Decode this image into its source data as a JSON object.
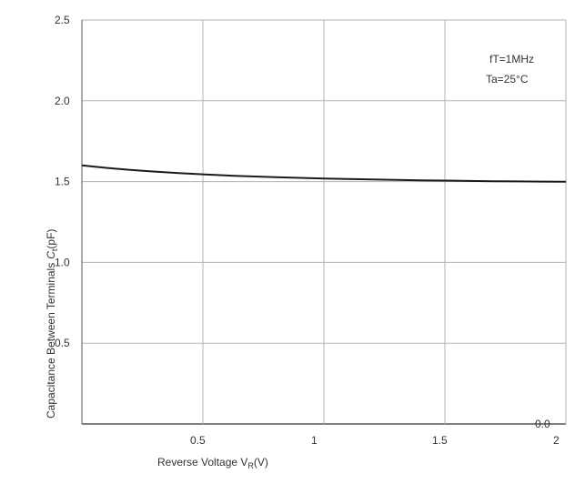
{
  "chart_data": {
    "type": "line",
    "title": "",
    "xlabel": "Reverse Voltage  V",
    "xlabel_sub": "R",
    "xlabel_unit": "(V)",
    "ylabel": "Capacitance Between Terminals",
    "ylabel_symbol": "C",
    "ylabel_sub": "t",
    "ylabel_unit": "(pF)",
    "xlim": [
      0,
      2
    ],
    "ylim": [
      0,
      2.5
    ],
    "x_ticks": [
      "0.5",
      "1",
      "1.5",
      "2"
    ],
    "y_ticks": [
      "0.0",
      "0.5",
      "1.0",
      "1.5",
      "2.0",
      "2.5"
    ],
    "grid": true,
    "annotations": [
      "fT=1MHz",
      "Ta=25°C"
    ],
    "series": [
      {
        "name": "",
        "x": [
          0,
          0.1,
          0.2,
          0.3,
          0.4,
          0.5,
          0.6,
          0.7,
          0.8,
          0.9,
          1.0,
          1.1,
          1.2,
          1.3,
          1.4,
          1.5,
          1.6,
          1.7,
          1.8,
          1.9,
          2.0
        ],
        "y": [
          1.6,
          1.585,
          1.572,
          1.562,
          1.553,
          1.545,
          1.538,
          1.532,
          1.527,
          1.523,
          1.519,
          1.516,
          1.513,
          1.51,
          1.508,
          1.506,
          1.504,
          1.502,
          1.501,
          1.5,
          1.499
        ]
      }
    ],
    "colors": {
      "line": "#1a1a1a",
      "grid": "#b3b3b3",
      "axis": "#555555"
    }
  }
}
